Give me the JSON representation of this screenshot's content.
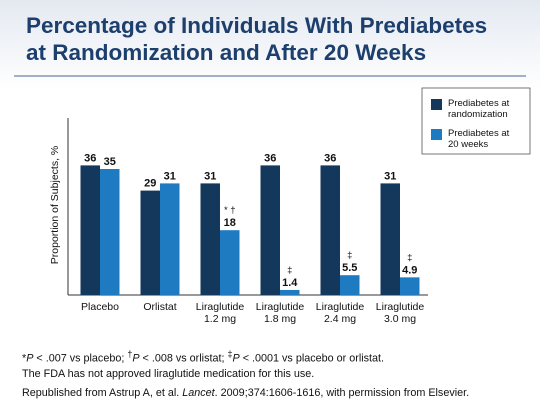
{
  "slide": {
    "title_line1": "Percentage of Individuals With Prediabetes",
    "title_line2": "at Randomization and After 20 Weeks"
  },
  "chart_data": {
    "type": "bar",
    "ylabel": "Proportion of Subjects, %",
    "ylim": [
      0,
      40
    ],
    "categories": [
      [
        "Placebo"
      ],
      [
        "Orlistat"
      ],
      [
        "Liraglutide",
        "1.2 mg"
      ],
      [
        "Liraglutide",
        "1.8 mg"
      ],
      [
        "Liraglutide",
        "2.4 mg"
      ],
      [
        "Liraglutide",
        "3.0 mg"
      ]
    ],
    "series": [
      {
        "name": "Prediabetes at randomization",
        "legend_lines": [
          "Prediabetes at",
          "randomization"
        ],
        "color": "#14375c",
        "values": [
          36,
          29,
          31,
          36,
          36,
          31
        ],
        "labels": [
          "36",
          "29",
          "31",
          "36",
          "36",
          "31"
        ]
      },
      {
        "name": "Prediabetes at 20 weeks",
        "legend_lines": [
          "Prediabetes at",
          "20 weeks"
        ],
        "color": "#1e7bc1",
        "values": [
          35,
          31,
          18,
          1.4,
          5.5,
          4.9
        ],
        "labels": [
          "35",
          "31",
          "18",
          "1.4",
          "5.5",
          "4.9"
        ]
      }
    ],
    "annotations": [
      "",
      "",
      "* †",
      "‡",
      "‡",
      "‡"
    ],
    "legend_position": "top-right",
    "grid": false
  },
  "footnote": {
    "line1_html": "*<i>P</i> &lt; .007 vs placebo; <sup>†</sup><i>P</i> &lt; .008 vs orlistat; <sup>‡</sup><i>P</i> &lt; .0001 vs placebo or orlistat.",
    "line2": "The FDA has not approved liraglutide medication for this use."
  },
  "source": {
    "line_html": "Republished from Astrup A, et al. <i>Lancet</i>. 2009;374:1606-1616, with permission from Elsevier."
  }
}
